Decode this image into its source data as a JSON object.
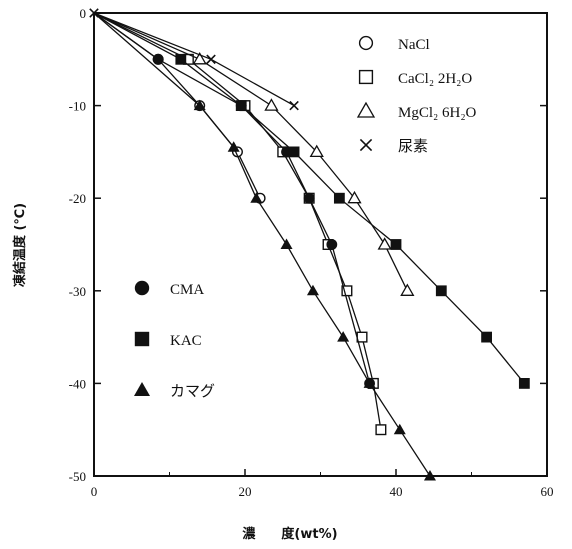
{
  "chart_data": {
    "type": "scatter",
    "xlabel": "濃　　度(wt%)",
    "ylabel": "凍結温度 (℃)",
    "xlim": [
      0,
      60
    ],
    "ylim": [
      -50,
      0
    ],
    "xticks": [
      "0",
      "20",
      "40",
      "60"
    ],
    "yticks": [
      "0",
      "-10",
      "-20",
      "-30",
      "-40",
      "-50"
    ],
    "grid": false,
    "series": [
      {
        "name": "NaCl",
        "marker": "open-circle",
        "points": [
          [
            0,
            0
          ],
          [
            8.5,
            -5
          ],
          [
            14,
            -10
          ],
          [
            19,
            -15
          ],
          [
            22,
            -20
          ]
        ]
      },
      {
        "name": "CaCl₂ 2H₂O",
        "marker": "open-square",
        "points": [
          [
            0,
            0
          ],
          [
            12.5,
            -5
          ],
          [
            20,
            -10
          ],
          [
            25,
            -15
          ],
          [
            28.5,
            -20
          ],
          [
            31,
            -25
          ],
          [
            33.5,
            -30
          ],
          [
            35.5,
            -35
          ],
          [
            37,
            -40
          ],
          [
            38,
            -45
          ]
        ]
      },
      {
        "name": "MgCl₂ 6H₂O",
        "marker": "open-triangle",
        "points": [
          [
            0,
            0
          ],
          [
            14,
            -5
          ],
          [
            23.5,
            -10
          ],
          [
            29.5,
            -15
          ],
          [
            34.5,
            -20
          ],
          [
            38.5,
            -25
          ],
          [
            41.5,
            -30
          ]
        ]
      },
      {
        "name": "尿素",
        "marker": "cross",
        "points": [
          [
            0,
            0
          ],
          [
            15.5,
            -5
          ],
          [
            26.5,
            -10
          ]
        ]
      },
      {
        "name": "CMA",
        "marker": "filled-circle",
        "points": [
          [
            0,
            0
          ],
          [
            8.5,
            -5
          ],
          [
            19.5,
            -10
          ],
          [
            25.5,
            -15
          ],
          [
            28.5,
            -20
          ],
          [
            31.5,
            -25
          ],
          [
            36.5,
            -40
          ]
        ]
      },
      {
        "name": "KAC",
        "marker": "filled-square",
        "points": [
          [
            0,
            0
          ],
          [
            11.5,
            -5
          ],
          [
            19.5,
            -10
          ],
          [
            26.5,
            -15
          ],
          [
            32.5,
            -20
          ],
          [
            40,
            -25
          ],
          [
            46,
            -30
          ],
          [
            52,
            -35
          ],
          [
            57,
            -40
          ]
        ]
      },
      {
        "name": "カマグ",
        "marker": "filled-triangle",
        "points": [
          [
            0,
            0
          ],
          [
            14,
            -10
          ],
          [
            18.5,
            -14.5
          ],
          [
            21.5,
            -20
          ],
          [
            25.5,
            -25
          ],
          [
            29,
            -30
          ],
          [
            33,
            -35
          ],
          [
            36.5,
            -40
          ],
          [
            40.5,
            -45
          ],
          [
            44.5,
            -50
          ]
        ]
      }
    ],
    "legend": {
      "upper_right": [
        "NaCl",
        "CaCl₂ 2H₂O",
        "MgCl₂ 6H₂O",
        "尿素"
      ],
      "lower_left": [
        "CMA",
        "KAC",
        "カマグ"
      ]
    }
  }
}
